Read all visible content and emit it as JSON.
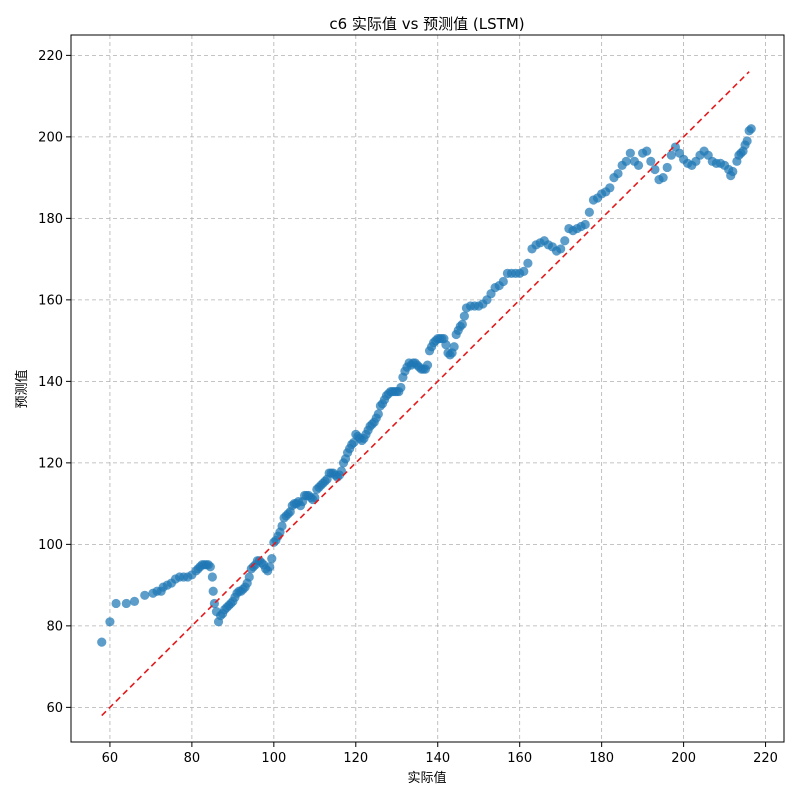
{
  "chart_data": {
    "type": "scatter",
    "title": "c6 实际值 vs 预测值 (LSTM)",
    "xlabel": "实际值",
    "ylabel": "预测值",
    "xlim": [
      50.5,
      224.5
    ],
    "ylim": [
      51.5,
      225
    ],
    "x_ticks": [
      60,
      80,
      100,
      120,
      140,
      160,
      180,
      200,
      220
    ],
    "y_ticks": [
      60,
      80,
      100,
      120,
      140,
      160,
      180,
      200,
      220
    ],
    "grid": true,
    "point_color": "#1f77b4",
    "reference_line": {
      "color": "#e41a1c",
      "style": "dashed",
      "x": [
        58,
        216
      ],
      "y": [
        58,
        216
      ]
    },
    "points": [
      [
        58,
        76
      ],
      [
        60,
        81
      ],
      [
        61.5,
        85.5
      ],
      [
        64,
        85.5
      ],
      [
        66,
        86
      ],
      [
        68.5,
        87.5
      ],
      [
        70.5,
        88
      ],
      [
        71.5,
        88.5
      ],
      [
        72.5,
        88.5
      ],
      [
        73,
        89.5
      ],
      [
        74,
        90
      ],
      [
        75,
        90.5
      ],
      [
        76,
        91.5
      ],
      [
        77,
        92
      ],
      [
        78,
        92
      ],
      [
        79,
        92
      ],
      [
        80,
        92.5
      ],
      [
        81,
        93.5
      ],
      [
        81.5,
        94
      ],
      [
        82,
        94.5
      ],
      [
        82.5,
        95
      ],
      [
        83,
        95
      ],
      [
        83.5,
        95
      ],
      [
        84,
        95
      ],
      [
        84.5,
        94.5
      ],
      [
        85,
        92
      ],
      [
        85.2,
        88.5
      ],
      [
        85.5,
        85.5
      ],
      [
        86,
        83.5
      ],
      [
        86.5,
        81
      ],
      [
        87,
        82.5
      ],
      [
        87.5,
        83
      ],
      [
        88,
        84
      ],
      [
        88.5,
        84.5
      ],
      [
        89,
        85
      ],
      [
        89.5,
        85.5
      ],
      [
        90,
        86
      ],
      [
        90.5,
        87
      ],
      [
        91,
        88
      ],
      [
        91.5,
        88.5
      ],
      [
        92,
        88.5
      ],
      [
        92.5,
        89
      ],
      [
        93,
        89.5
      ],
      [
        93.5,
        90.5
      ],
      [
        94,
        92
      ],
      [
        94.5,
        94
      ],
      [
        95,
        94.5
      ],
      [
        95.5,
        95
      ],
      [
        96,
        96
      ],
      [
        96.5,
        96
      ],
      [
        97,
        95.5
      ],
      [
        97.5,
        95
      ],
      [
        98,
        94
      ],
      [
        98.5,
        93.5
      ],
      [
        99,
        94.5
      ],
      [
        99.5,
        96.5
      ],
      [
        100,
        100.5
      ],
      [
        100.5,
        101
      ],
      [
        101,
        102
      ],
      [
        101.5,
        103
      ],
      [
        102,
        104.5
      ],
      [
        102.5,
        106.5
      ],
      [
        103,
        107
      ],
      [
        103.5,
        107.5
      ],
      [
        104,
        108
      ],
      [
        104.5,
        109.5
      ],
      [
        105,
        110
      ],
      [
        105.5,
        110
      ],
      [
        106,
        110.5
      ],
      [
        106.5,
        109.5
      ],
      [
        107,
        110.5
      ],
      [
        107.5,
        112
      ],
      [
        108,
        112
      ],
      [
        108.5,
        112
      ],
      [
        109,
        111.5
      ],
      [
        109.5,
        111
      ],
      [
        110,
        111.5
      ],
      [
        110.5,
        113.5
      ],
      [
        111,
        114
      ],
      [
        111.5,
        114.5
      ],
      [
        112,
        115
      ],
      [
        112.5,
        115.5
      ],
      [
        113,
        116
      ],
      [
        113.5,
        117.5
      ],
      [
        114,
        117.5
      ],
      [
        114.5,
        117.5
      ],
      [
        115,
        117
      ],
      [
        115.5,
        116.5
      ],
      [
        116,
        117
      ],
      [
        116.5,
        118
      ],
      [
        117,
        120
      ],
      [
        117.5,
        121
      ],
      [
        118,
        122.5
      ],
      [
        118.5,
        123.5
      ],
      [
        119,
        124.5
      ],
      [
        119.5,
        125
      ],
      [
        120,
        127
      ],
      [
        120.5,
        126.5
      ],
      [
        121,
        126
      ],
      [
        121.5,
        125.5
      ],
      [
        122,
        126
      ],
      [
        122.5,
        127
      ],
      [
        123,
        128
      ],
      [
        123.5,
        129
      ],
      [
        124,
        129.5
      ],
      [
        124.5,
        130
      ],
      [
        125,
        131
      ],
      [
        125.5,
        132
      ],
      [
        126,
        134
      ],
      [
        126.5,
        134.5
      ],
      [
        127,
        135.5
      ],
      [
        127.5,
        136.5
      ],
      [
        128,
        137
      ],
      [
        128.5,
        137.5
      ],
      [
        129,
        137.5
      ],
      [
        129.5,
        137.5
      ],
      [
        130,
        137.5
      ],
      [
        130.5,
        137.5
      ],
      [
        131,
        138.5
      ],
      [
        131.5,
        141
      ],
      [
        132,
        142.5
      ],
      [
        132.5,
        143.5
      ],
      [
        133,
        144.5
      ],
      [
        133.5,
        144
      ],
      [
        134,
        144.5
      ],
      [
        134.5,
        144.5
      ],
      [
        135,
        144
      ],
      [
        135.5,
        143.5
      ],
      [
        136,
        143
      ],
      [
        136.5,
        143
      ],
      [
        137,
        143
      ],
      [
        137.5,
        144
      ],
      [
        138,
        147.5
      ],
      [
        138.5,
        148.5
      ],
      [
        139,
        149.5
      ],
      [
        139.5,
        150
      ],
      [
        140,
        150.5
      ],
      [
        140.5,
        150.5
      ],
      [
        141,
        150.5
      ],
      [
        141.5,
        150.5
      ],
      [
        142,
        149
      ],
      [
        142.5,
        147
      ],
      [
        143,
        146.5
      ],
      [
        143.5,
        147
      ],
      [
        144,
        148.5
      ],
      [
        144.5,
        151.5
      ],
      [
        145,
        152.5
      ],
      [
        145.5,
        153.5
      ],
      [
        146,
        154
      ],
      [
        146.5,
        156
      ],
      [
        147,
        158
      ],
      [
        148,
        158.5
      ],
      [
        149,
        158.5
      ],
      [
        150,
        158.5
      ],
      [
        151,
        159
      ],
      [
        152,
        160
      ],
      [
        153,
        161.5
      ],
      [
        154,
        163
      ],
      [
        155,
        163.5
      ],
      [
        156,
        164.5
      ],
      [
        157,
        166.5
      ],
      [
        158,
        166.5
      ],
      [
        159,
        166.5
      ],
      [
        160,
        166.5
      ],
      [
        161,
        167
      ],
      [
        162,
        169
      ],
      [
        163,
        172.5
      ],
      [
        164,
        173.5
      ],
      [
        165,
        174
      ],
      [
        166,
        174.5
      ],
      [
        167,
        173.5
      ],
      [
        168,
        173
      ],
      [
        169,
        172
      ],
      [
        170,
        172.5
      ],
      [
        171,
        174.5
      ],
      [
        172,
        177.5
      ],
      [
        173,
        177
      ],
      [
        174,
        177.5
      ],
      [
        175,
        178
      ],
      [
        176,
        178.5
      ],
      [
        177,
        181.5
      ],
      [
        178,
        184.5
      ],
      [
        179,
        185
      ],
      [
        180,
        186
      ],
      [
        181,
        186.5
      ],
      [
        182,
        187.5
      ],
      [
        183,
        190
      ],
      [
        184,
        191
      ],
      [
        185,
        193
      ],
      [
        186,
        194
      ],
      [
        187,
        196
      ],
      [
        188,
        194
      ],
      [
        189,
        193
      ],
      [
        190,
        196
      ],
      [
        191,
        196.5
      ],
      [
        192,
        194
      ],
      [
        193,
        192
      ],
      [
        194,
        189.5
      ],
      [
        195,
        190
      ],
      [
        196,
        192.5
      ],
      [
        197,
        195.5
      ],
      [
        198,
        197.5
      ],
      [
        199,
        196
      ],
      [
        200,
        194.5
      ],
      [
        201,
        193.5
      ],
      [
        202,
        193
      ],
      [
        203,
        194
      ],
      [
        204,
        195.5
      ],
      [
        205,
        196.5
      ],
      [
        206,
        195.5
      ],
      [
        207,
        194
      ],
      [
        208,
        193.5
      ],
      [
        209,
        193.5
      ],
      [
        210,
        193
      ],
      [
        211,
        192
      ],
      [
        211.5,
        190.5
      ],
      [
        212,
        191.5
      ],
      [
        213,
        194
      ],
      [
        213.5,
        195.5
      ],
      [
        214,
        196
      ],
      [
        214.5,
        196.5
      ],
      [
        215,
        198
      ],
      [
        215.5,
        199
      ],
      [
        216,
        201.5
      ],
      [
        216.5,
        202
      ]
    ]
  }
}
